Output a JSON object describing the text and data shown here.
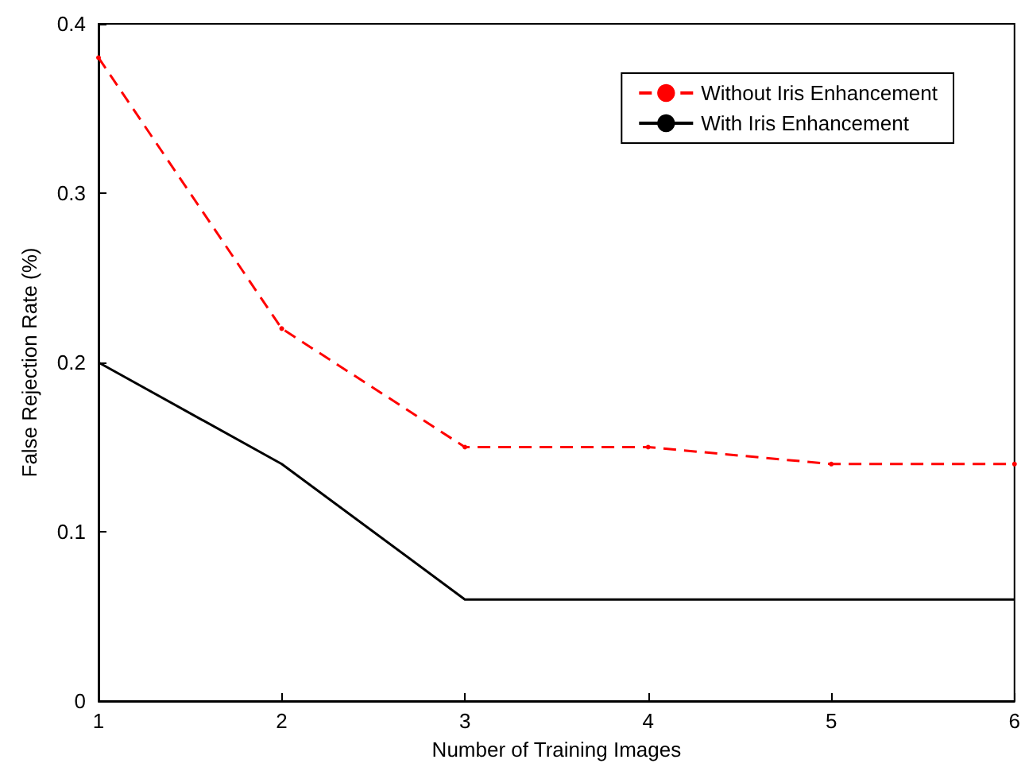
{
  "chart_data": {
    "type": "line",
    "xlabel": "Number of Training Images",
    "ylabel": "False Rejection Rate (%)",
    "x": [
      1,
      2,
      3,
      4,
      5,
      6
    ],
    "series": [
      {
        "name": "Without Iris Enhancement",
        "color": "#ff0000",
        "values": [
          0.38,
          0.22,
          0.15,
          0.15,
          0.14,
          0.14
        ],
        "line_style": "dashed",
        "marker": "circle"
      },
      {
        "name": "With Iris Enhancement",
        "color": "#000000",
        "values": [
          0.2,
          0.14,
          0.06,
          0.06,
          0.06,
          0.06
        ],
        "line_style": "solid",
        "marker": "none"
      }
    ],
    "xlim": [
      1,
      6
    ],
    "xticks": [
      1,
      2,
      3,
      4,
      5,
      6
    ],
    "ylim": [
      0,
      0.4
    ],
    "yticks": [
      0,
      0.1,
      0.2,
      0.3,
      0.4
    ],
    "grid": false,
    "legend": "top right"
  }
}
